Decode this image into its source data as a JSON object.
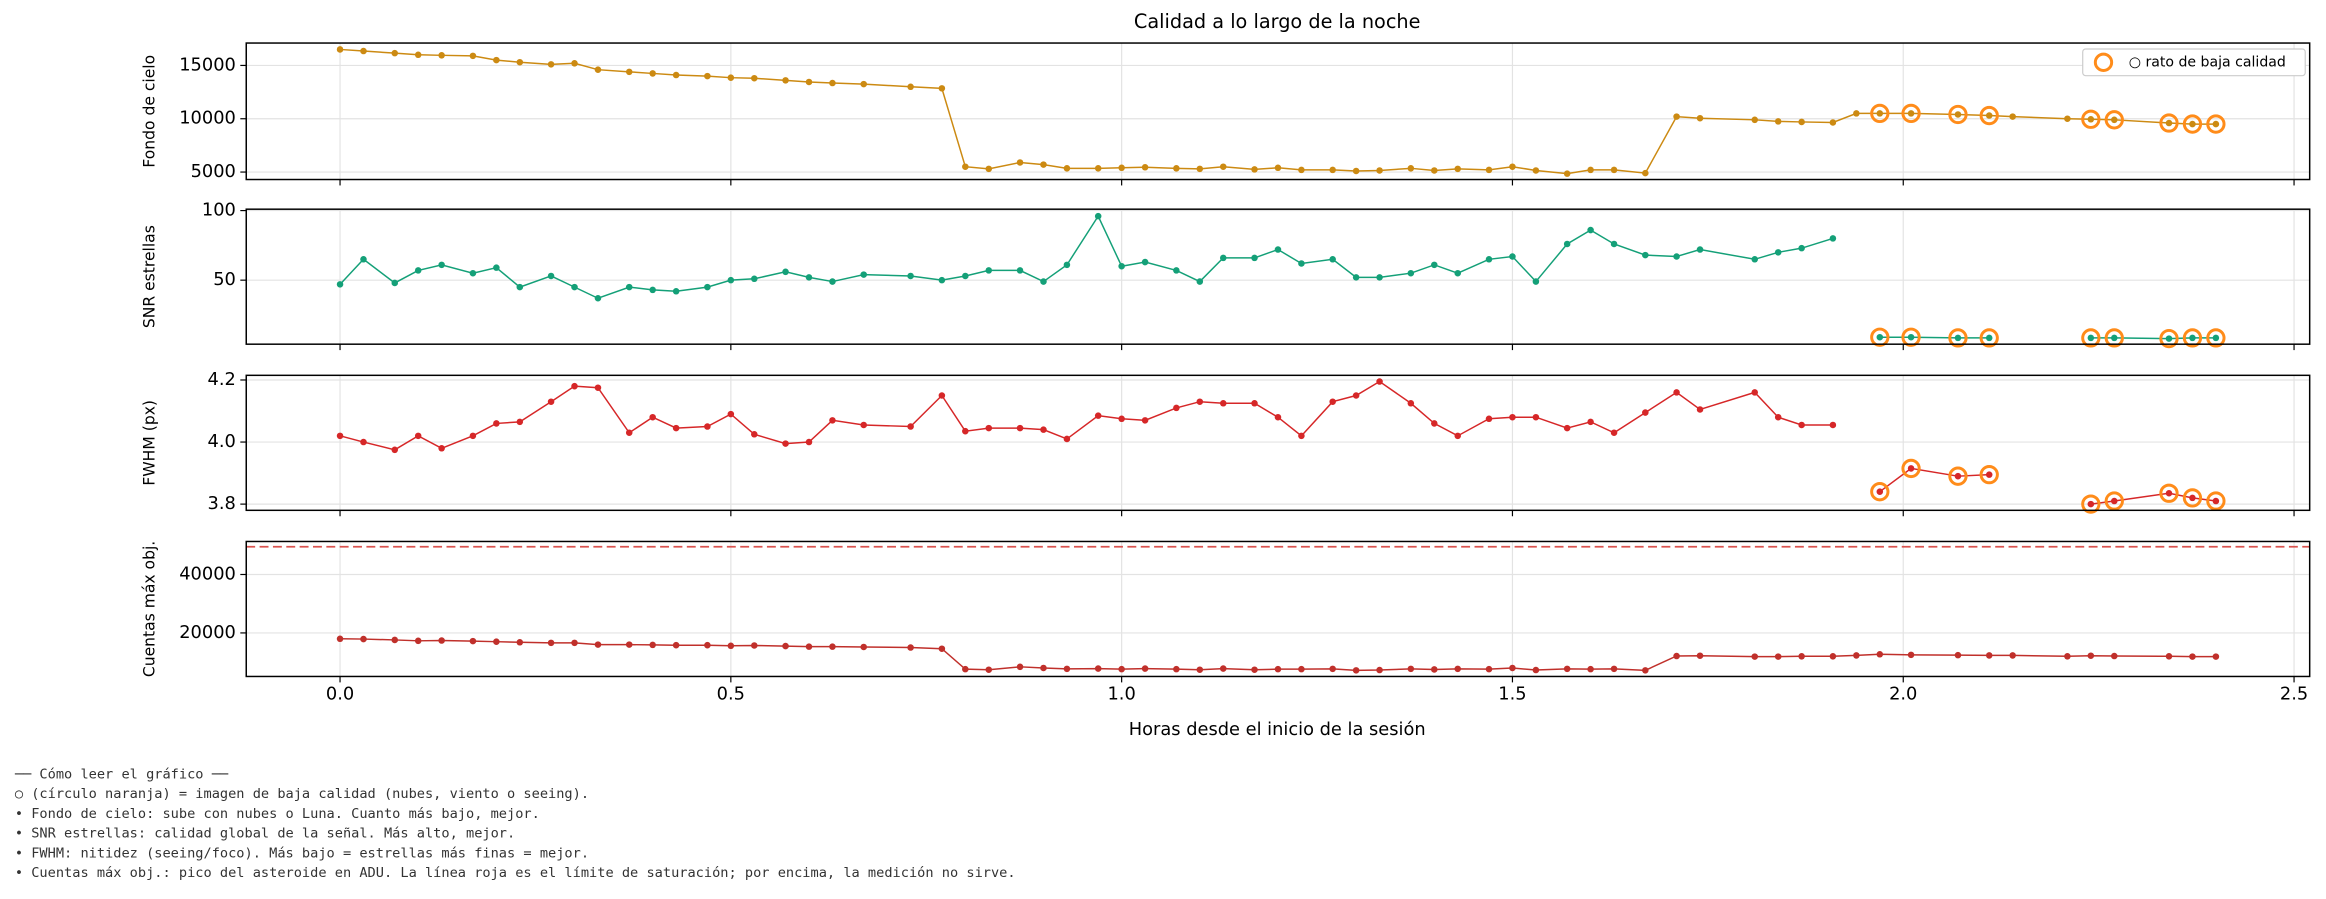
{
  "chart_data": {
    "type": "line",
    "title": "Calidad a lo largo de la noche",
    "xlabel": "Horas desde el inicio de la sesión",
    "x": [
      0,
      0.03,
      0.07,
      0.1,
      0.13,
      0.17,
      0.2,
      0.23,
      0.27,
      0.3,
      0.33,
      0.37,
      0.4,
      0.43,
      0.47,
      0.5,
      0.53,
      0.57,
      0.6,
      0.63,
      0.67,
      0.73,
      0.77,
      0.8,
      0.83,
      0.87,
      0.9,
      0.93,
      0.97,
      1.0,
      1.03,
      1.07,
      1.1,
      1.13,
      1.17,
      1.2,
      1.23,
      1.27,
      1.3,
      1.33,
      1.37,
      1.4,
      1.43,
      1.47,
      1.5,
      1.53,
      1.57,
      1.6,
      1.63,
      1.67,
      1.71,
      1.74,
      1.81,
      1.84,
      1.87,
      1.91,
      1.94,
      1.97,
      2.01,
      2.07,
      2.11,
      2.14,
      2.21,
      2.24,
      2.27,
      2.34,
      2.37,
      2.4
    ],
    "xlim": [
      -0.12,
      2.52
    ],
    "xticks": [
      {
        "value": 0,
        "label": "0.0"
      },
      0.5,
      {
        "value": 1,
        "label": "1.0"
      },
      1.5,
      {
        "value": 2,
        "label": "2.0"
      },
      2.5
    ],
    "grid": true,
    "legend": "upper right",
    "low_quality": {
      "name": "○ rato de baja calidad",
      "color": "#ff8c1a",
      "x": [
        1.97,
        2.01,
        2.07,
        2.11,
        2.24,
        2.27,
        2.34,
        2.37,
        2.4
      ]
    },
    "panels": [
      {
        "ylabel": "Fondo de cielo",
        "ylim": [
          4300,
          17100
        ],
        "yticks": [
          5000,
          10000,
          15000
        ],
        "color": "#cc8a12",
        "mark_low_quality": true,
        "values": [
          16500,
          16350,
          16150,
          16000,
          15950,
          15900,
          15500,
          15300,
          15100,
          15200,
          14600,
          14400,
          14250,
          14100,
          14000,
          13850,
          13800,
          13600,
          13450,
          13350,
          13250,
          13000,
          12850,
          5500,
          5300,
          5900,
          5700,
          5350,
          5350,
          5400,
          5450,
          5350,
          5300,
          5500,
          5250,
          5400,
          5200,
          5200,
          5100,
          5150,
          5350,
          5150,
          5300,
          5200,
          5500,
          5150,
          4850,
          5200,
          5200,
          4900,
          10200,
          10050,
          9900,
          9750,
          9700,
          9650,
          10500,
          10500,
          10500,
          10400,
          10300,
          10200,
          10000,
          9950,
          9900,
          9600,
          9500,
          9500
        ]
      },
      {
        "ylabel": "SNR estrellas",
        "ylim": [
          4,
          101
        ],
        "yticks": [
          50,
          100
        ],
        "color": "#14a078",
        "mark_low_quality": true,
        "values": [
          47,
          65,
          48,
          57,
          61,
          55,
          59,
          45,
          53,
          45,
          37,
          45,
          43,
          42,
          45,
          50,
          51,
          56,
          52,
          49,
          54,
          53,
          50,
          53,
          57,
          57,
          49,
          61,
          96,
          60,
          63,
          57,
          49,
          66,
          66,
          72,
          62,
          65,
          52,
          52,
          55,
          61,
          55,
          65,
          67,
          49,
          76,
          86,
          76,
          68,
          67,
          72,
          65,
          70,
          73,
          80,
          null,
          9,
          9,
          8.5,
          8.5,
          null,
          null,
          8.5,
          8.5,
          8,
          8.5,
          8.5
        ]
      },
      {
        "ylabel": "FWHM (px)",
        "ylim": [
          3.78,
          4.215
        ],
        "yticks": [
          3.8,
          {
            "value": 4,
            "label": "4.0"
          },
          4.2
        ],
        "color": "#d62728",
        "mark_low_quality": true,
        "values": [
          4.02,
          4.0,
          3.975,
          4.02,
          3.98,
          4.02,
          4.06,
          4.065,
          4.13,
          4.18,
          4.175,
          4.03,
          4.08,
          4.045,
          4.05,
          4.09,
          4.025,
          3.995,
          4.0,
          4.07,
          4.055,
          4.05,
          4.15,
          4.035,
          4.045,
          4.045,
          4.04,
          4.01,
          4.085,
          4.075,
          4.07,
          4.11,
          4.13,
          4.125,
          4.125,
          4.08,
          4.02,
          4.13,
          4.15,
          4.195,
          4.125,
          4.06,
          4.02,
          4.075,
          4.08,
          4.08,
          4.045,
          4.065,
          4.03,
          4.095,
          4.16,
          4.105,
          4.16,
          4.08,
          4.055,
          4.055,
          null,
          3.84,
          3.915,
          3.89,
          3.895,
          null,
          null,
          3.8,
          3.81,
          3.835,
          3.82,
          3.81
        ]
      },
      {
        "ylabel": "Cuentas máx obj.",
        "ylim": [
          5100,
          51300
        ],
        "yticks": [
          20000,
          40000
        ],
        "color": "#c0302b",
        "mark_low_quality": false,
        "hline": {
          "value": 49500,
          "color": "#d9534f"
        },
        "values": [
          18000,
          17900,
          17600,
          17300,
          17400,
          17200,
          17000,
          16800,
          16600,
          16600,
          16000,
          16000,
          15900,
          15800,
          15800,
          15600,
          15700,
          15500,
          15300,
          15300,
          15200,
          15000,
          14600,
          7600,
          7400,
          8400,
          8000,
          7700,
          7800,
          7600,
          7800,
          7600,
          7400,
          7800,
          7400,
          7600,
          7600,
          7700,
          7200,
          7300,
          7700,
          7500,
          7700,
          7600,
          8000,
          7300,
          7700,
          7600,
          7700,
          7200,
          12100,
          12200,
          11900,
          11900,
          12000,
          12000,
          12300,
          12700,
          12500,
          12400,
          12300,
          12300,
          12000,
          12200,
          12100,
          12000,
          11900,
          11900
        ]
      }
    ]
  },
  "notes": [
    "── Cómo leer el gráfico ──",
    "○ (círculo naranja) = imagen de baja calidad (nubes, viento o seeing).",
    "• Fondo de cielo: sube con nubes o Luna. Cuanto más bajo, mejor.",
    "• SNR estrellas: calidad global de la señal. Más alto, mejor.",
    "• FWHM: nitidez (seeing/foco). Más bajo = estrellas más finas = mejor.",
    "• Cuentas máx obj.: pico del asteroide en ADU. La línea roja es el límite de saturación; por encima, la medición no sirve."
  ]
}
